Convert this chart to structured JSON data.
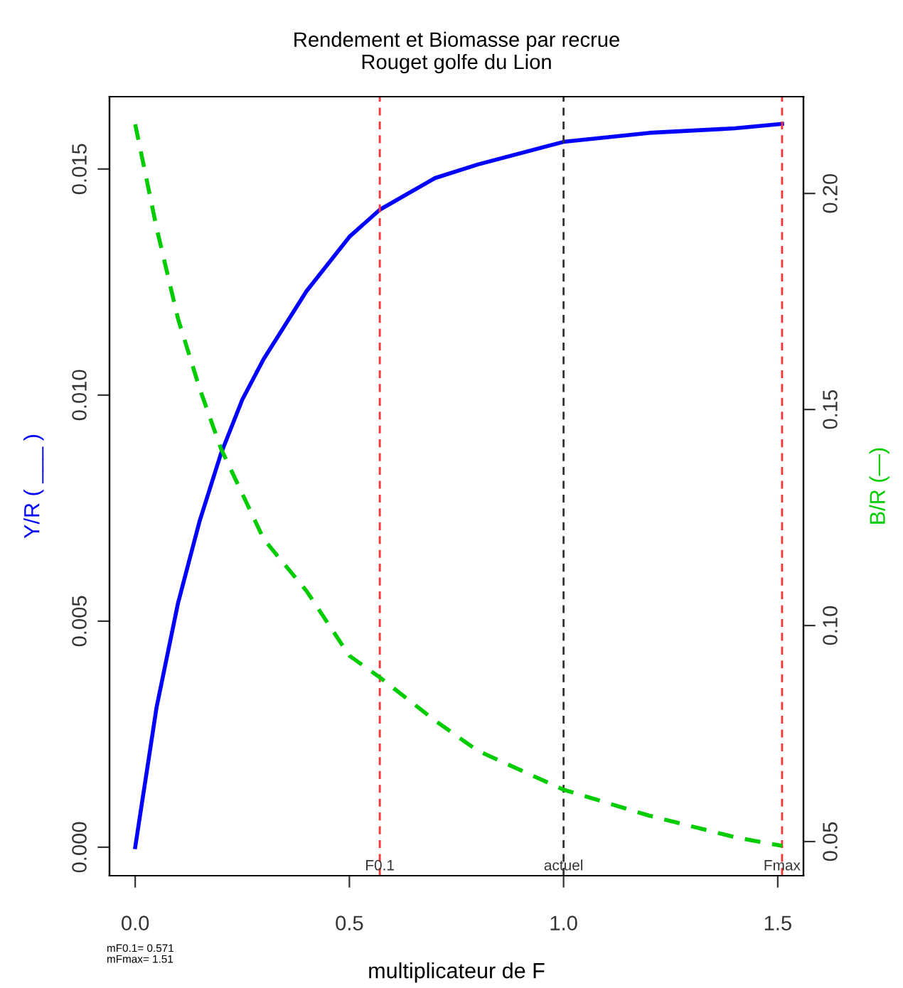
{
  "chart_data": {
    "type": "line",
    "title": "Rendement et Biomasse par recrue\nRouget golfe du Lion",
    "xlabel": "multiplicateur de F",
    "ylabel": "Y/R ( ___ )",
    "y2label": "B/R (—)",
    "xlim": [
      -0.06,
      1.56
    ],
    "xticks": [
      {
        "value": 0,
        "label": "0.0"
      },
      0.5,
      {
        "value": 1,
        "label": "1.0"
      },
      1.5
    ],
    "ylim": [
      -0.00063,
      0.0166
    ],
    "yticks": [
      {
        "value": 0,
        "label": "0.000"
      },
      0.005,
      {
        "value": 0.01,
        "label": "0.010"
      },
      0.015
    ],
    "y2lim": [
      0.0421,
      0.2224
    ],
    "y2ticks": [
      0.05,
      {
        "value": 0.1,
        "label": "0.10"
      },
      0.15,
      {
        "value": 0.2,
        "label": "0.20"
      }
    ],
    "grid": false,
    "legend": false,
    "series": [
      {
        "color": "#0000ff",
        "line_style": "solid",
        "x": [
          0,
          0.05,
          0.1,
          0.15,
          0.2,
          0.25,
          0.3,
          0.4,
          0.5,
          0.571,
          0.7,
          0.8,
          1.0,
          1.2,
          1.4,
          1.51
        ],
        "values": [
          0,
          0.0031,
          0.0054,
          0.0072,
          0.0087,
          0.0099,
          0.0108,
          0.0123,
          0.0135,
          0.0141,
          0.0148,
          0.0151,
          0.0156,
          0.0158,
          0.0159,
          0.016
        ]
      },
      {
        "color": "#00cc00",
        "line_style": "dashed",
        "axis": "y2",
        "x": [
          0,
          0.05,
          0.1,
          0.15,
          0.2,
          0.3,
          0.4,
          0.5,
          0.571,
          0.7,
          0.8,
          1.0,
          1.2,
          1.4,
          1.51
        ],
        "values": [
          0.216,
          0.192,
          0.171,
          0.155,
          0.141,
          0.12,
          0.108,
          0.093,
          0.088,
          0.078,
          0.071,
          0.062,
          0.056,
          0.051,
          0.049
        ]
      }
    ],
    "ref_lines": [
      {
        "axis": "x",
        "value": 0.571,
        "label": "F0.1",
        "color": "#ff3333",
        "line_style": "dashed"
      },
      {
        "axis": "x",
        "value": 1.0,
        "label": "actuel",
        "color": "#333333",
        "line_style": "dashed"
      },
      {
        "axis": "x",
        "value": 1.51,
        "label": "Fmax",
        "color": "#ff3333",
        "line_style": "dashed"
      }
    ],
    "annotations": [
      "mF0.1= 0.571\nmFmax= 1.51"
    ]
  }
}
